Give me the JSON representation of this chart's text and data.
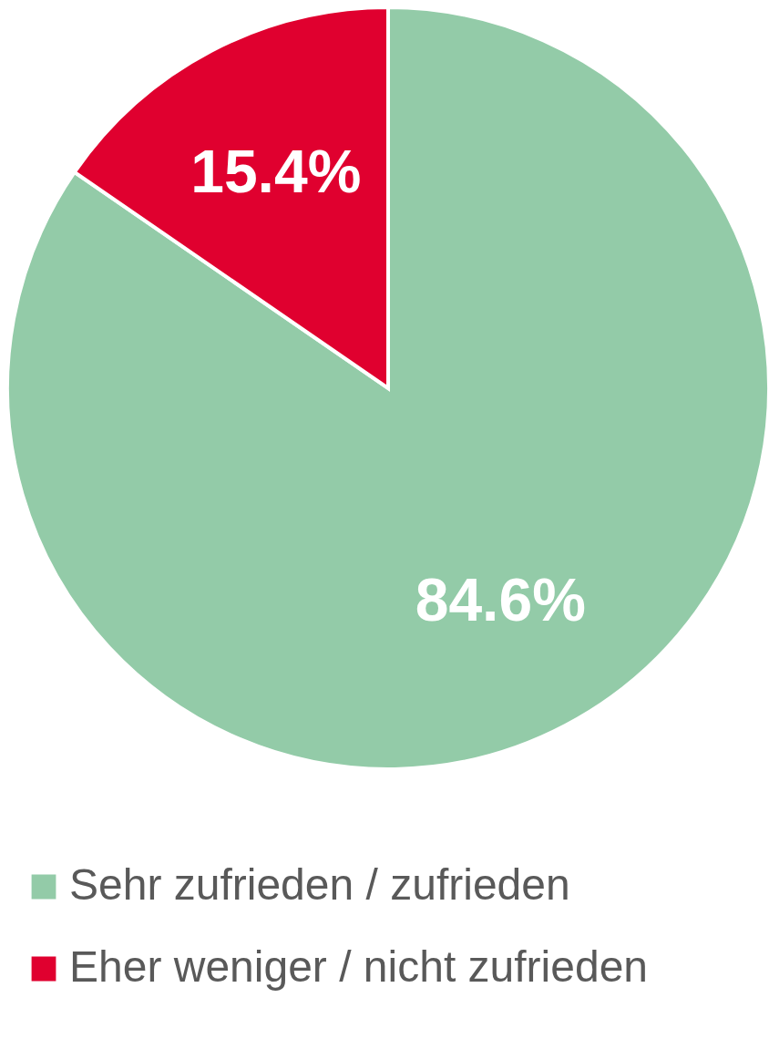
{
  "chart_data": {
    "type": "pie",
    "categories": [
      "Sehr zufrieden / zufrieden",
      "Eher weniger / nicht zufrieden"
    ],
    "values": [
      84.6,
      15.4
    ],
    "colors": [
      "#93cba8",
      "#e0002f"
    ],
    "value_labels": [
      "84.6%",
      "15.4%"
    ],
    "legend": "bottom"
  }
}
